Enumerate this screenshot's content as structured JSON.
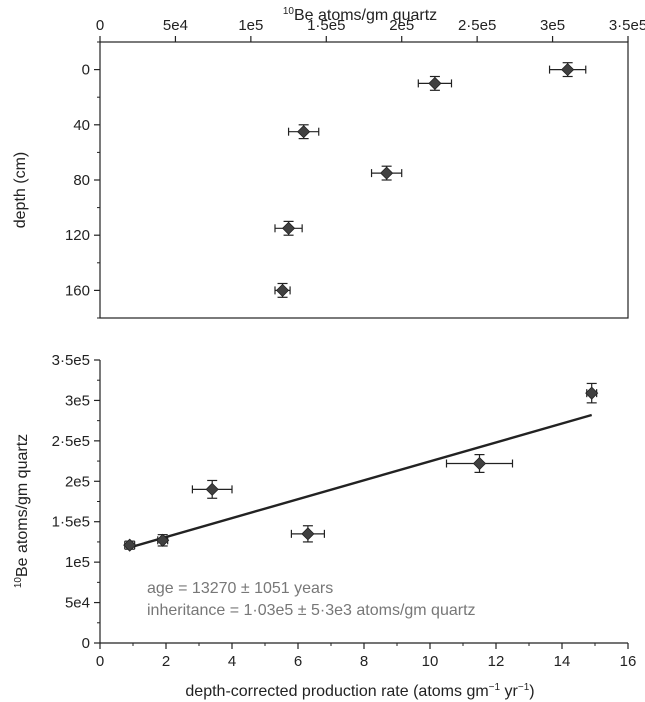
{
  "chart_data": [
    {
      "type": "scatter",
      "xlabel_html": {
        "sup": "10",
        "text": "Be atoms/gm quartz"
      },
      "ylabel": "depth (cm)",
      "x_axis_position": "top",
      "y_inverted": true,
      "xlim": [
        0,
        350000
      ],
      "ylim": [
        -20,
        180
      ],
      "xticks": [
        0,
        50000,
        100000,
        150000,
        200000,
        250000,
        300000,
        350000
      ],
      "xtick_labels": [
        "0",
        "5e4",
        "1e5",
        "1·5e5",
        "2e5",
        "2·5e5",
        "3e5",
        "3·5e5"
      ],
      "yticks": [
        0,
        40,
        80,
        120,
        160
      ],
      "ytick_labels": [
        "0",
        "40",
        "80",
        "120",
        "160"
      ],
      "marker": "diamond",
      "marker_color": "#404040",
      "points": [
        {
          "x": 310000,
          "y": 0,
          "xerr": 12000,
          "yerr": 5
        },
        {
          "x": 222000,
          "y": 10,
          "xerr": 11000,
          "yerr": 5
        },
        {
          "x": 135000,
          "y": 45,
          "xerr": 10000,
          "yerr": 5
        },
        {
          "x": 190000,
          "y": 75,
          "xerr": 10000,
          "yerr": 5
        },
        {
          "x": 125000,
          "y": 115,
          "xerr": 9000,
          "yerr": 5
        },
        {
          "x": 121000,
          "y": 160,
          "xerr": 5000,
          "yerr": 5
        }
      ]
    },
    {
      "type": "scatter",
      "xlabel_parts": [
        "depth-corrected production rate (atoms gm",
        "−1",
        " yr",
        "−1",
        ")"
      ],
      "ylabel_html": {
        "sup": "10",
        "text": "Be atoms/gm quartz"
      },
      "xlim": [
        0,
        16
      ],
      "ylim": [
        0,
        350000
      ],
      "xticks": [
        0,
        2,
        4,
        6,
        8,
        10,
        12,
        14,
        16
      ],
      "xtick_labels": [
        "0",
        "2",
        "4",
        "6",
        "8",
        "10",
        "12",
        "14",
        "16"
      ],
      "yticks": [
        0,
        50000,
        100000,
        150000,
        200000,
        250000,
        300000,
        350000
      ],
      "ytick_labels": [
        "0",
        "5e4",
        "1e5",
        "1·5e5",
        "2e5",
        "2·5e5",
        "3e5",
        "3·5e5"
      ],
      "marker": "diamond",
      "marker_color": "#404040",
      "points": [
        {
          "x": 0.9,
          "y": 121000,
          "xerr": 0.15,
          "yerr": 5000
        },
        {
          "x": 1.9,
          "y": 127000,
          "xerr": 0.15,
          "yerr": 7000
        },
        {
          "x": 3.4,
          "y": 190000,
          "xerr": 0.6,
          "yerr": 11000
        },
        {
          "x": 6.3,
          "y": 135000,
          "xerr": 0.5,
          "yerr": 10000
        },
        {
          "x": 11.5,
          "y": 222000,
          "xerr": 1.0,
          "yerr": 11000
        },
        {
          "x": 14.9,
          "y": 309000,
          "xerr": 0.15,
          "yerr": 12000
        }
      ],
      "fit_line": {
        "x": [
          0.8,
          14.9
        ],
        "y": [
          117000,
          282000
        ]
      },
      "annotations": [
        "age = 13270 ± 1051 years",
        "inheritance = 1·03e5 ± 5·3e3 atoms/gm quartz"
      ]
    }
  ]
}
